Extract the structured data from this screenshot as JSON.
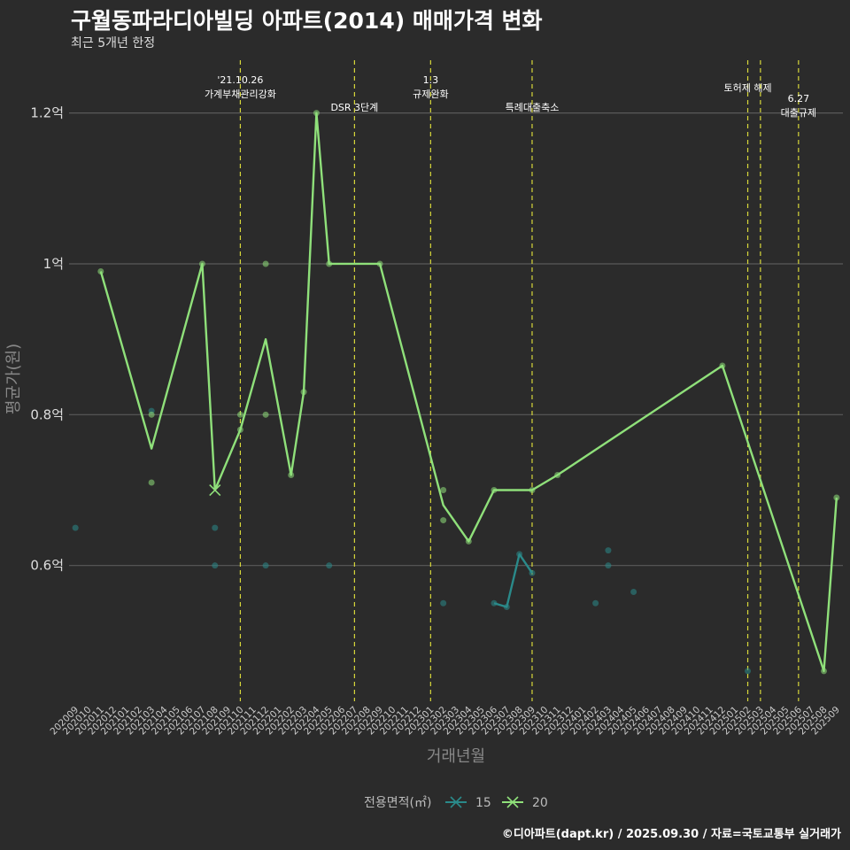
{
  "page": {
    "title": "구월동파라디아빌딩 아파트(2014) 매매가격 변화",
    "subtitle": "최근 5개년 한정",
    "caption": "©디아파트(dapt.kr) / 2025.09.30 / 자료=국토교통부 실거래가"
  },
  "chart_data": {
    "type": "line",
    "xlabel": "거래년월",
    "ylabel": "평균가(원)",
    "x_categories": [
      "202009",
      "202010",
      "202011",
      "202012",
      "202101",
      "202102",
      "202103",
      "202104",
      "202105",
      "202106",
      "202107",
      "202108",
      "202109",
      "202110",
      "202111",
      "202112",
      "202201",
      "202202",
      "202203",
      "202204",
      "202205",
      "202206",
      "202207",
      "202208",
      "202209",
      "202210",
      "202211",
      "202212",
      "202301",
      "202302",
      "202303",
      "202304",
      "202305",
      "202306",
      "202307",
      "202308",
      "202309",
      "202310",
      "202311",
      "202312",
      "202401",
      "202402",
      "202403",
      "202404",
      "202405",
      "202406",
      "202407",
      "202408",
      "202409",
      "202410",
      "202411",
      "202412",
      "202501",
      "202502",
      "202503",
      "202504",
      "202505",
      "202506",
      "202507",
      "202508",
      "202509"
    ],
    "y_ticks": [
      {
        "value": 0.6,
        "label": "0.6억"
      },
      {
        "value": 0.8,
        "label": "0.8억"
      },
      {
        "value": 1.0,
        "label": "1억"
      },
      {
        "value": 1.2,
        "label": "1.2억"
      }
    ],
    "ylim": [
      0.42,
      1.27
    ],
    "grid": true,
    "legend": {
      "title": "전용면적(㎡)",
      "position": "bottom",
      "items": [
        {
          "label": "15",
          "color": "#2a8a8a"
        },
        {
          "label": "20",
          "color": "#8fe07a"
        }
      ]
    },
    "events": [
      {
        "x": "202110",
        "label": "'21.10.26\n가계부채관리강화",
        "row": 0
      },
      {
        "x": "202207",
        "label": "DSR 3단계",
        "row": 1
      },
      {
        "x": "202301",
        "label": "1.3\n규제완화",
        "row": 0
      },
      {
        "x": "202309",
        "label": "특례대출축소",
        "row": 1
      },
      {
        "x": "202502",
        "label": "토허제 해제",
        "row": 0
      },
      {
        "x": "202503",
        "label": "",
        "row": 0
      },
      {
        "x": "202506",
        "label": "6.27\n대출규제",
        "row": 1
      }
    ],
    "series": [
      {
        "name": "15",
        "color": "#2a8a8a",
        "line": [
          {
            "x": "202306",
            "y": 0.55
          },
          {
            "x": "202307",
            "y": 0.545
          },
          {
            "x": "202308",
            "y": 0.615
          },
          {
            "x": "202309",
            "y": 0.59
          }
        ],
        "points": [
          {
            "x": "202009",
            "y": 0.65
          },
          {
            "x": "202103",
            "y": 0.805
          },
          {
            "x": "202108",
            "y": 0.65
          },
          {
            "x": "202108",
            "y": 0.6
          },
          {
            "x": "202112",
            "y": 0.6
          },
          {
            "x": "202205",
            "y": 0.6
          },
          {
            "x": "202302",
            "y": 0.55
          },
          {
            "x": "202306",
            "y": 0.55
          },
          {
            "x": "202307",
            "y": 0.545
          },
          {
            "x": "202308",
            "y": 0.615
          },
          {
            "x": "202309",
            "y": 0.59
          },
          {
            "x": "202402",
            "y": 0.55
          },
          {
            "x": "202403",
            "y": 0.62
          },
          {
            "x": "202403",
            "y": 0.6
          },
          {
            "x": "202405",
            "y": 0.565
          },
          {
            "x": "202502",
            "y": 0.46
          }
        ]
      },
      {
        "name": "20",
        "color": "#8fe07a",
        "line": [
          {
            "x": "202011",
            "y": 0.99
          },
          {
            "x": "202103",
            "y": 0.755
          },
          {
            "x": "202107",
            "y": 1.0
          },
          {
            "x": "202108",
            "y": 0.7
          },
          {
            "x": "202110",
            "y": 0.78
          },
          {
            "x": "202112",
            "y": 0.9
          },
          {
            "x": "202202",
            "y": 0.72
          },
          {
            "x": "202203",
            "y": 0.83
          },
          {
            "x": "202204",
            "y": 1.2
          },
          {
            "x": "202205",
            "y": 1.0
          },
          {
            "x": "202209",
            "y": 1.0
          },
          {
            "x": "202302",
            "y": 0.68
          },
          {
            "x": "202304",
            "y": 0.632
          },
          {
            "x": "202306",
            "y": 0.7
          },
          {
            "x": "202309",
            "y": 0.7
          },
          {
            "x": "202311",
            "y": 0.72
          },
          {
            "x": "202412",
            "y": 0.865
          },
          {
            "x": "202508",
            "y": 0.46
          },
          {
            "x": "202509",
            "y": 0.69
          }
        ],
        "points": [
          {
            "x": "202011",
            "y": 0.99
          },
          {
            "x": "202103",
            "y": 0.8
          },
          {
            "x": "202103",
            "y": 0.71
          },
          {
            "x": "202107",
            "y": 1.0
          },
          {
            "x": "202110",
            "y": 0.8
          },
          {
            "x": "202110",
            "y": 0.78
          },
          {
            "x": "202112",
            "y": 1.0
          },
          {
            "x": "202112",
            "y": 0.8
          },
          {
            "x": "202202",
            "y": 0.72
          },
          {
            "x": "202203",
            "y": 0.83
          },
          {
            "x": "202204",
            "y": 1.2
          },
          {
            "x": "202205",
            "y": 1.0
          },
          {
            "x": "202209",
            "y": 1.0
          },
          {
            "x": "202302",
            "y": 0.7
          },
          {
            "x": "202302",
            "y": 0.66
          },
          {
            "x": "202304",
            "y": 0.632
          },
          {
            "x": "202306",
            "y": 0.7
          },
          {
            "x": "202309",
            "y": 0.7
          },
          {
            "x": "202311",
            "y": 0.72
          },
          {
            "x": "202412",
            "y": 0.865
          },
          {
            "x": "202508",
            "y": 0.46
          },
          {
            "x": "202509",
            "y": 0.69
          }
        ],
        "crosses": [
          {
            "x": "202108",
            "y": 0.7
          }
        ]
      }
    ]
  }
}
